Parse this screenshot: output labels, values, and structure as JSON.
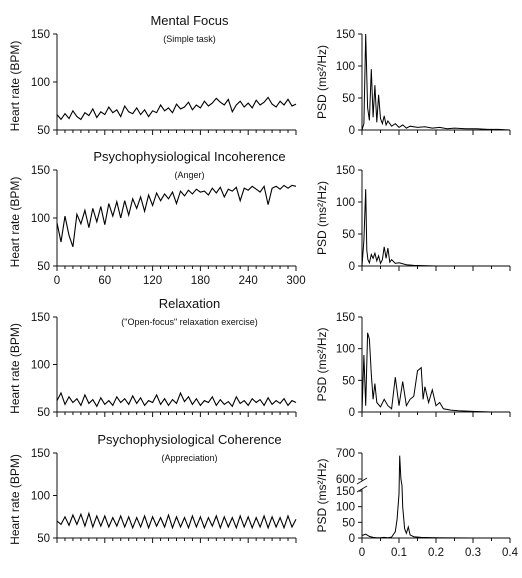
{
  "chart_data": [
    {
      "type": "line",
      "panel": "heart-rate",
      "title": "Mental Focus",
      "subtitle": "(Simple task)",
      "ylabel": "Heart rate (BPM)",
      "ylim": [
        50,
        150
      ],
      "yticks": [
        50,
        100,
        150
      ],
      "xlim": [
        0,
        300
      ],
      "x": [
        0,
        5,
        10,
        15,
        20,
        25,
        30,
        35,
        40,
        45,
        50,
        55,
        60,
        65,
        70,
        75,
        80,
        85,
        90,
        95,
        100,
        105,
        110,
        115,
        120,
        125,
        130,
        135,
        140,
        145,
        150,
        155,
        160,
        165,
        170,
        175,
        180,
        185,
        190,
        195,
        200,
        205,
        210,
        215,
        220,
        225,
        230,
        235,
        240,
        245,
        250,
        255,
        260,
        265,
        270,
        275,
        280,
        285,
        290,
        295,
        300
      ],
      "y": [
        66,
        61,
        67,
        62,
        70,
        64,
        61,
        68,
        65,
        72,
        63,
        69,
        66,
        74,
        68,
        71,
        64,
        75,
        69,
        67,
        73,
        66,
        71,
        64,
        70,
        68,
        76,
        70,
        73,
        68,
        77,
        72,
        74,
        79,
        71,
        76,
        73,
        80,
        75,
        78,
        83,
        79,
        76,
        82,
        69,
        76,
        80,
        74,
        78,
        73,
        81,
        76,
        79,
        84,
        77,
        74,
        80,
        76,
        82,
        75,
        77
      ]
    },
    {
      "type": "line",
      "panel": "psd",
      "ylabel": "PSD (ms²/Hz)",
      "ylim": [
        0,
        150
      ],
      "yticks": [
        0,
        50,
        100,
        150
      ],
      "xlim": [
        0,
        0.4
      ],
      "x": [
        0,
        0.005,
        0.01,
        0.015,
        0.02,
        0.025,
        0.03,
        0.035,
        0.04,
        0.045,
        0.05,
        0.055,
        0.06,
        0.065,
        0.07,
        0.08,
        0.09,
        0.1,
        0.11,
        0.12,
        0.13,
        0.15,
        0.17,
        0.19,
        0.21,
        0.23,
        0.25,
        0.28,
        0.31,
        0.34,
        0.37,
        0.4
      ],
      "y": [
        0,
        10,
        150,
        35,
        15,
        95,
        20,
        70,
        12,
        55,
        18,
        10,
        22,
        8,
        14,
        6,
        10,
        4,
        8,
        3,
        6,
        4,
        5,
        3,
        4,
        2,
        3,
        2,
        2,
        1,
        1,
        0
      ]
    },
    {
      "type": "line",
      "panel": "heart-rate",
      "title": "Psychophysiological Incoherence",
      "subtitle": "(Anger)",
      "ylabel": "Heart rate (BPM)",
      "ylim": [
        50,
        150
      ],
      "yticks": [
        50,
        100,
        150
      ],
      "xlim": [
        0,
        300
      ],
      "xticks": [
        0,
        60,
        120,
        180,
        240,
        300
      ],
      "x": [
        0,
        5,
        10,
        15,
        20,
        25,
        30,
        35,
        40,
        45,
        50,
        55,
        60,
        65,
        70,
        75,
        80,
        85,
        90,
        95,
        100,
        105,
        110,
        115,
        120,
        125,
        130,
        135,
        140,
        145,
        150,
        155,
        160,
        165,
        170,
        175,
        180,
        185,
        190,
        195,
        200,
        205,
        210,
        215,
        220,
        225,
        230,
        235,
        240,
        245,
        250,
        255,
        260,
        265,
        270,
        275,
        280,
        285,
        290,
        295,
        300
      ],
      "y": [
        95,
        75,
        102,
        82,
        70,
        104,
        94,
        108,
        90,
        110,
        96,
        112,
        93,
        115,
        102,
        117,
        100,
        118,
        103,
        120,
        110,
        122,
        107,
        124,
        113,
        126,
        118,
        125,
        120,
        127,
        115,
        128,
        123,
        129,
        125,
        130,
        127,
        128,
        124,
        131,
        126,
        132,
        122,
        130,
        128,
        132,
        118,
        131,
        129,
        133,
        130,
        127,
        133,
        114,
        131,
        133,
        130,
        134,
        131,
        134,
        133
      ]
    },
    {
      "type": "line",
      "panel": "psd",
      "ylabel": "PSD (ms²/Hz)",
      "ylim": [
        0,
        150
      ],
      "yticks": [
        0,
        50,
        100,
        150
      ],
      "xlim": [
        0,
        0.4
      ],
      "x": [
        0,
        0.005,
        0.01,
        0.013,
        0.016,
        0.02,
        0.025,
        0.03,
        0.035,
        0.04,
        0.045,
        0.05,
        0.055,
        0.06,
        0.065,
        0.07,
        0.075,
        0.08,
        0.09,
        0.1,
        0.12,
        0.14,
        0.2,
        0.3,
        0.4
      ],
      "y": [
        0,
        40,
        120,
        25,
        10,
        5,
        18,
        12,
        20,
        8,
        16,
        4,
        10,
        30,
        12,
        28,
        6,
        10,
        4,
        5,
        2,
        1,
        0,
        0,
        0
      ]
    },
    {
      "type": "line",
      "panel": "heart-rate",
      "title": "Relaxation",
      "subtitle": "(\"Open-focus\" relaxation exercise)",
      "ylabel": "Heart rate (BPM)",
      "ylim": [
        50,
        150
      ],
      "yticks": [
        50,
        100,
        150
      ],
      "xlim": [
        0,
        300
      ],
      "x": [
        0,
        5,
        10,
        15,
        20,
        25,
        30,
        35,
        40,
        45,
        50,
        55,
        60,
        65,
        70,
        75,
        80,
        85,
        90,
        95,
        100,
        105,
        110,
        115,
        120,
        125,
        130,
        135,
        140,
        145,
        150,
        155,
        160,
        165,
        170,
        175,
        180,
        185,
        190,
        195,
        200,
        205,
        210,
        215,
        220,
        225,
        230,
        235,
        240,
        245,
        250,
        255,
        260,
        265,
        270,
        275,
        280,
        285,
        290,
        295,
        300
      ],
      "y": [
        62,
        70,
        58,
        66,
        60,
        64,
        57,
        68,
        59,
        63,
        56,
        65,
        58,
        62,
        57,
        66,
        60,
        64,
        58,
        67,
        59,
        65,
        57,
        62,
        60,
        68,
        58,
        64,
        57,
        63,
        59,
        70,
        61,
        66,
        58,
        64,
        57,
        62,
        60,
        66,
        57,
        63,
        58,
        61,
        56,
        66,
        59,
        62,
        57,
        64,
        60,
        63,
        57,
        65,
        58,
        62,
        59,
        64,
        57,
        62,
        60
      ]
    },
    {
      "type": "line",
      "panel": "psd",
      "ylabel": "PSD (ms²/Hz)",
      "ylim": [
        0,
        150
      ],
      "yticks": [
        0,
        50,
        100,
        150
      ],
      "xlim": [
        0,
        0.4
      ],
      "x": [
        0,
        0.005,
        0.01,
        0.015,
        0.02,
        0.025,
        0.03,
        0.035,
        0.04,
        0.05,
        0.06,
        0.07,
        0.08,
        0.09,
        0.1,
        0.11,
        0.12,
        0.13,
        0.14,
        0.15,
        0.16,
        0.165,
        0.17,
        0.18,
        0.19,
        0.2,
        0.21,
        0.22,
        0.24,
        0.26,
        0.3,
        0.35,
        0.4
      ],
      "y": [
        0,
        90,
        10,
        125,
        115,
        60,
        20,
        45,
        15,
        8,
        20,
        10,
        5,
        55,
        10,
        48,
        10,
        20,
        25,
        65,
        70,
        20,
        40,
        15,
        35,
        10,
        15,
        5,
        3,
        2,
        1,
        0,
        0
      ]
    },
    {
      "type": "line",
      "panel": "heart-rate",
      "title": "Psychophysiological Coherence",
      "subtitle": "(Appreciation)",
      "ylabel": "Heart rate (BPM)",
      "ylim": [
        50,
        150
      ],
      "yticks": [
        50,
        100,
        150
      ],
      "xlim": [
        0,
        300
      ],
      "x": [
        0,
        5,
        10,
        15,
        20,
        25,
        30,
        35,
        40,
        45,
        50,
        55,
        60,
        65,
        70,
        75,
        80,
        85,
        90,
        95,
        100,
        105,
        110,
        115,
        120,
        125,
        130,
        135,
        140,
        145,
        150,
        155,
        160,
        165,
        170,
        175,
        180,
        185,
        190,
        195,
        200,
        205,
        210,
        215,
        220,
        225,
        230,
        235,
        240,
        245,
        250,
        255,
        260,
        265,
        270,
        275,
        280,
        285,
        290,
        295,
        300
      ],
      "y": [
        70,
        66,
        75,
        65,
        77,
        66,
        78,
        64,
        79,
        63,
        76,
        64,
        76,
        63,
        74,
        64,
        76,
        63,
        75,
        62,
        74,
        63,
        76,
        62,
        75,
        64,
        74,
        63,
        77,
        62,
        75,
        63,
        74,
        62,
        76,
        63,
        75,
        62,
        74,
        64,
        76,
        62,
        75,
        63,
        74,
        62,
        76,
        63,
        75,
        62,
        74,
        63,
        76,
        62,
        75,
        63,
        74,
        62,
        76,
        63,
        72
      ]
    },
    {
      "type": "line",
      "panel": "psd",
      "ylabel": "PSD (ms²/Hz)",
      "ylim": [
        0,
        700
      ],
      "yticks": [
        0,
        50,
        100,
        150,
        600,
        700
      ],
      "axis_break": [
        150,
        600
      ],
      "xlim": [
        0,
        0.4
      ],
      "xticks": [
        0,
        0.1,
        0.2,
        0.3,
        0.4
      ],
      "x": [
        0,
        0.01,
        0.02,
        0.03,
        0.04,
        0.05,
        0.06,
        0.07,
        0.08,
        0.09,
        0.095,
        0.1,
        0.102,
        0.105,
        0.108,
        0.11,
        0.115,
        0.12,
        0.125,
        0.13,
        0.14,
        0.16,
        0.2,
        0.3,
        0.4
      ],
      "y": [
        8,
        12,
        5,
        2,
        1,
        1,
        2,
        1,
        3,
        20,
        60,
        140,
        690,
        600,
        350,
        100,
        30,
        15,
        35,
        10,
        4,
        2,
        1,
        0,
        0
      ]
    }
  ]
}
